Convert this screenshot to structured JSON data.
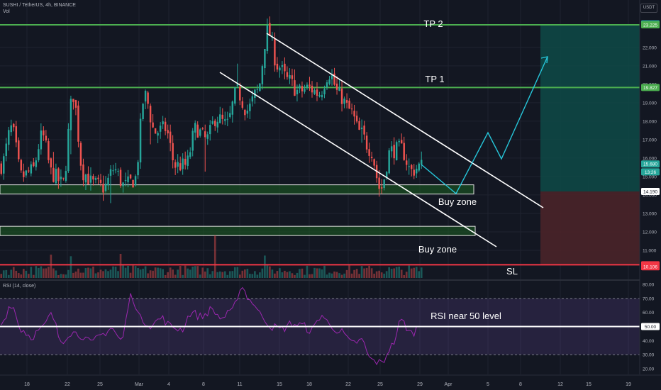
{
  "header": {
    "symbol_line": "SUSHI / TetherUS, 4h, BINANCE",
    "vol_label": "Vol",
    "rsi_label": "RSI (14, close)",
    "quote_currency": "USDT"
  },
  "annotations": {
    "tp2": "TP 2",
    "tp1": "TP 1",
    "buy_zone_upper": "Buy zone",
    "buy_zone_lower": "Buy zone",
    "sl": "SL",
    "rsi_note": "RSI near 50 level"
  },
  "colors": {
    "background": "#131722",
    "grid": "#1f2330",
    "candle_up": "#26a69a",
    "candle_down": "#ef5350",
    "take_profit_line": "#4caf50",
    "stop_loss_line": "#f23645",
    "channel": "#ffffff",
    "projection": "#26c6da",
    "rsi_line": "#9c27b0",
    "rsi_band": "#7e57c2",
    "buy_zone_fill": "#1b5e20",
    "target_zone": "#0e4a46",
    "stop_zone": "#4a2429",
    "axis_text": "#b2b5be"
  },
  "chart_data": [
    {
      "type": "candlestick",
      "title": "SUSHI / TetherUS, 4h, BINANCE",
      "x_ticks": [
        "18",
        "22",
        "25",
        "Mar",
        "4",
        "8",
        "11",
        "15",
        "18",
        "22",
        "25",
        "29",
        "Apr",
        "5",
        "8",
        "12",
        "15",
        "19"
      ],
      "y_ticks": [
        11.0,
        12.0,
        13.0,
        14.0,
        15.0,
        16.0,
        17.0,
        18.0,
        19.0,
        20.0,
        21.0,
        22.0
      ],
      "y_range": [
        9.5,
        23.8
      ],
      "price_levels": [
        {
          "label": "TP 2",
          "value": 23.225
        },
        {
          "label": "TP 1",
          "value": 19.827
        },
        {
          "label": "SL",
          "value": 10.215
        }
      ],
      "price_badges": [
        {
          "text": "23.276",
          "value": 23.276,
          "color": "#26a69a"
        },
        {
          "text": "23.225",
          "value": 23.225,
          "color": "#4caf50"
        },
        {
          "text": "19.827",
          "value": 19.827,
          "color": "#4caf50"
        },
        {
          "text": "15.680",
          "value": 15.68,
          "color": "#26a69a"
        },
        {
          "text": "13:26",
          "value": 15.25,
          "color": "#26a69a"
        },
        {
          "text": "14.190",
          "value": 14.19,
          "color": "#ffffff"
        },
        {
          "text": "10.215",
          "value": 10.215,
          "color": "#f23645"
        },
        {
          "text": "10.106",
          "value": 10.106,
          "color": "#f23645"
        }
      ],
      "buy_zones": [
        {
          "label": "Buy zone",
          "low": 14.05,
          "high": 14.55
        },
        {
          "label": "Buy zone",
          "low": 11.8,
          "high": 12.3
        }
      ],
      "price_path": [
        15.6,
        17.6,
        15.0,
        15.3,
        17.2,
        15.1,
        14.6,
        19.4,
        15.2,
        14.6,
        14.4,
        15.4,
        14.5,
        14.8,
        19.4,
        17.4,
        17.6,
        15.6,
        15.6,
        17.6,
        17.0,
        18.2,
        17.8,
        19.6,
        18.6,
        19.6,
        22.9,
        21.0,
        20.2,
        19.6,
        19.8,
        19.5,
        20.6,
        19.4,
        18.6,
        17.4,
        16.5,
        14.3,
        16.4,
        16.5,
        15.3,
        15.6
      ]
    },
    {
      "type": "line",
      "title": "RSI (14, close)",
      "y_ticks": [
        20.0,
        30.0,
        40.0,
        50.0,
        60.0,
        70.0,
        80.0
      ],
      "y_range": [
        16,
        82
      ],
      "band": [
        30,
        70
      ],
      "reference_level": 50.0,
      "rsi_path": [
        52,
        66,
        48,
        43,
        48,
        58,
        40,
        46,
        44,
        38,
        44,
        49,
        40,
        72,
        55,
        51,
        56,
        50,
        48,
        60,
        57,
        62,
        56,
        60,
        78,
        68,
        58,
        50,
        48,
        52,
        51,
        47,
        58,
        50,
        46,
        38,
        40,
        26,
        24,
        36,
        54,
        45,
        52
      ]
    }
  ]
}
